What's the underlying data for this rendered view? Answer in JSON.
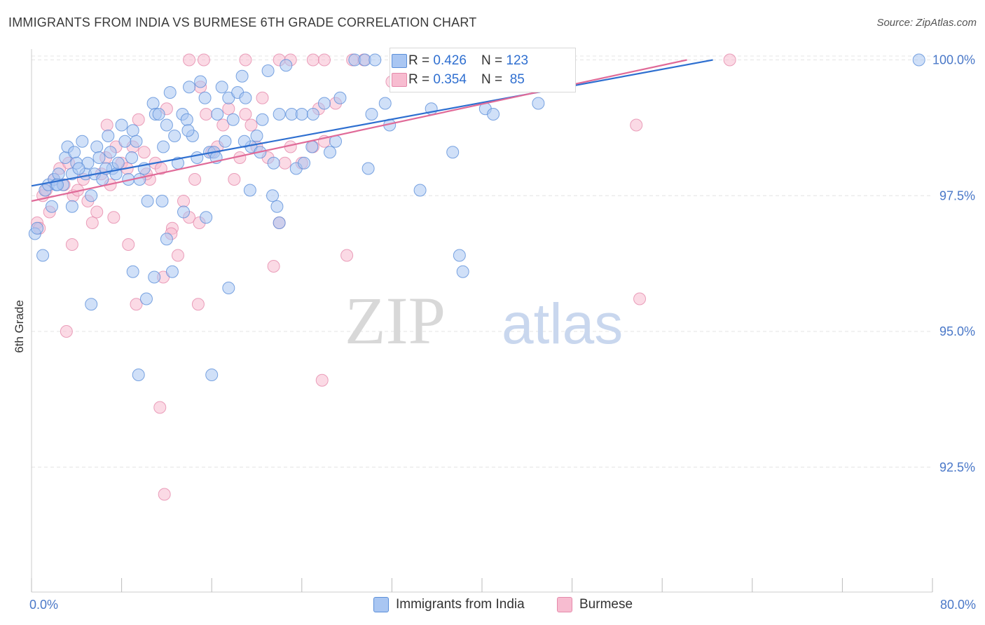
{
  "title": "IMMIGRANTS FROM INDIA VS BURMESE 6TH GRADE CORRELATION CHART",
  "source": "Source: ZipAtlas.com",
  "watermark": {
    "zip": "ZIP",
    "atlas": "atlas"
  },
  "colors": {
    "india_fill": "#a9c6f2",
    "india_stroke": "#5b8fd9",
    "india_line": "#2e6fd0",
    "burmese_fill": "#f7bcd0",
    "burmese_stroke": "#e58aab",
    "burmese_line": "#e06a98",
    "axis_label": "#4a78c8",
    "grid": "#e4e4e4"
  },
  "legend": {
    "rows": [
      {
        "r_label": "R = ",
        "r_value": "0.426",
        "n_label": "N = ",
        "n_value": "123"
      },
      {
        "r_label": "R = ",
        "r_value": "0.354",
        "n_label": "N = ",
        "n_value": " 85"
      }
    ]
  },
  "bottom_legend": {
    "india": "Immigrants from India",
    "burmese": "Burmese"
  },
  "chart_data": {
    "type": "scatter",
    "title": "IMMIGRANTS FROM INDIA VS BURMESE 6TH GRADE CORRELATION CHART",
    "xlabel": "",
    "ylabel": "6th Grade",
    "xlim": [
      0,
      80
    ],
    "ylim": [
      90.2,
      100.2
    ],
    "x_tick_labels": [
      "0.0%",
      "80.0%"
    ],
    "y_ticks": [
      92.5,
      95.0,
      97.5,
      100.0
    ],
    "y_tick_labels": [
      "92.5%",
      "95.0%",
      "97.5%",
      "100.0%"
    ],
    "grid": true,
    "legend_position": "top-center",
    "series": [
      {
        "name": "Immigrants from India",
        "R": 0.426,
        "N": 123,
        "trend": {
          "x": [
            0,
            60.5
          ],
          "y": [
            97.68,
            100.0
          ]
        },
        "points": [
          [
            0.3,
            96.8
          ],
          [
            0.5,
            96.9
          ],
          [
            1.0,
            96.4
          ],
          [
            1.2,
            97.6
          ],
          [
            1.5,
            97.7
          ],
          [
            1.8,
            97.3
          ],
          [
            2.0,
            97.8
          ],
          [
            2.2,
            97.7
          ],
          [
            2.4,
            97.9
          ],
          [
            2.8,
            97.7
          ],
          [
            3.0,
            98.2
          ],
          [
            3.2,
            98.4
          ],
          [
            3.6,
            97.9
          ],
          [
            3.8,
            98.3
          ],
          [
            4.0,
            98.1
          ],
          [
            4.5,
            98.5
          ],
          [
            4.8,
            97.9
          ],
          [
            5.0,
            98.1
          ],
          [
            5.3,
            97.5
          ],
          [
            5.6,
            97.9
          ],
          [
            5.8,
            98.4
          ],
          [
            6.0,
            98.2
          ],
          [
            6.3,
            97.8
          ],
          [
            6.8,
            98.6
          ],
          [
            7.0,
            98.3
          ],
          [
            7.2,
            98.0
          ],
          [
            7.5,
            97.9
          ],
          [
            8.0,
            98.8
          ],
          [
            8.3,
            98.5
          ],
          [
            8.6,
            97.8
          ],
          [
            9.0,
            98.7
          ],
          [
            9.3,
            98.5
          ],
          [
            9.6,
            97.8
          ],
          [
            10.0,
            98.0
          ],
          [
            10.3,
            97.4
          ],
          [
            10.8,
            99.2
          ],
          [
            11.0,
            99.0
          ],
          [
            11.3,
            99.0
          ],
          [
            11.7,
            98.4
          ],
          [
            12.0,
            98.8
          ],
          [
            12.3,
            99.4
          ],
          [
            12.7,
            98.6
          ],
          [
            13.0,
            98.1
          ],
          [
            13.4,
            99.0
          ],
          [
            13.8,
            98.9
          ],
          [
            14.0,
            99.5
          ],
          [
            14.3,
            98.6
          ],
          [
            14.7,
            98.2
          ],
          [
            15.0,
            99.6
          ],
          [
            15.4,
            99.3
          ],
          [
            15.8,
            98.3
          ],
          [
            16.2,
            98.3
          ],
          [
            16.5,
            99.0
          ],
          [
            16.9,
            99.5
          ],
          [
            17.2,
            98.5
          ],
          [
            17.5,
            99.3
          ],
          [
            17.9,
            98.9
          ],
          [
            18.3,
            99.4
          ],
          [
            18.7,
            99.7
          ],
          [
            19.0,
            99.3
          ],
          [
            19.5,
            98.4
          ],
          [
            20.0,
            98.6
          ],
          [
            20.5,
            98.9
          ],
          [
            21.0,
            99.8
          ],
          [
            21.5,
            98.1
          ],
          [
            22.0,
            99.0
          ],
          [
            22.6,
            99.9
          ],
          [
            23.1,
            99.0
          ],
          [
            24.0,
            99.0
          ],
          [
            25.0,
            99.0
          ],
          [
            26.0,
            99.2
          ],
          [
            28.7,
            100.0
          ],
          [
            29.6,
            100.0
          ],
          [
            30.5,
            100.0
          ],
          [
            33.3,
            100.0
          ],
          [
            37.4,
            98.3
          ],
          [
            34.5,
            97.6
          ],
          [
            38.0,
            96.4
          ],
          [
            38.3,
            96.1
          ],
          [
            9.5,
            94.2
          ],
          [
            5.3,
            95.5
          ],
          [
            9.0,
            96.1
          ],
          [
            10.2,
            95.6
          ],
          [
            12.5,
            96.1
          ],
          [
            17.5,
            95.8
          ],
          [
            16.0,
            94.2
          ],
          [
            13.5,
            97.2
          ],
          [
            15.5,
            97.1
          ],
          [
            12.0,
            96.7
          ],
          [
            22.0,
            97.0
          ],
          [
            23.5,
            98.0
          ],
          [
            29.9,
            98.0
          ],
          [
            34.8,
            99.6
          ],
          [
            40.3,
            99.1
          ],
          [
            41.0,
            99.0
          ],
          [
            43.9,
            99.7
          ],
          [
            44.5,
            99.7
          ],
          [
            45.0,
            99.2
          ],
          [
            35.5,
            99.1
          ],
          [
            31.8,
            98.8
          ],
          [
            27.4,
            99.3
          ],
          [
            26.5,
            98.3
          ],
          [
            24.9,
            98.4
          ],
          [
            21.4,
            97.5
          ],
          [
            19.4,
            97.6
          ],
          [
            11.6,
            97.4
          ],
          [
            10.9,
            96.0
          ],
          [
            3.6,
            97.3
          ],
          [
            2.3,
            97.7
          ],
          [
            4.2,
            98.0
          ],
          [
            6.6,
            98.0
          ],
          [
            7.7,
            98.1
          ],
          [
            8.9,
            98.2
          ],
          [
            13.9,
            98.7
          ],
          [
            16.4,
            98.2
          ],
          [
            18.9,
            98.5
          ],
          [
            20.3,
            98.3
          ],
          [
            21.8,
            97.3
          ],
          [
            24.2,
            98.1
          ],
          [
            27.0,
            98.5
          ],
          [
            30.2,
            99.0
          ],
          [
            31.4,
            99.2
          ],
          [
            78.8,
            100.0
          ]
        ]
      },
      {
        "name": "Burmese",
        "R": 0.354,
        "N": 85,
        "trend": {
          "x": [
            0,
            58.2
          ],
          "y": [
            97.4,
            100.0
          ]
        },
        "points": [
          [
            0.5,
            97.0
          ],
          [
            0.7,
            96.9
          ],
          [
            1.0,
            97.5
          ],
          [
            1.3,
            97.6
          ],
          [
            1.6,
            97.2
          ],
          [
            2.0,
            97.8
          ],
          [
            2.5,
            98.0
          ],
          [
            2.9,
            97.7
          ],
          [
            3.3,
            98.1
          ],
          [
            3.7,
            97.5
          ],
          [
            4.1,
            97.6
          ],
          [
            4.6,
            97.8
          ],
          [
            5.0,
            97.4
          ],
          [
            5.4,
            97.0
          ],
          [
            5.8,
            97.2
          ],
          [
            6.2,
            97.9
          ],
          [
            6.6,
            98.2
          ],
          [
            7.0,
            97.7
          ],
          [
            7.5,
            98.4
          ],
          [
            8.0,
            98.1
          ],
          [
            8.5,
            98.0
          ],
          [
            9.0,
            98.4
          ],
          [
            9.5,
            98.9
          ],
          [
            10.0,
            98.3
          ],
          [
            10.5,
            97.8
          ],
          [
            11.0,
            98.1
          ],
          [
            11.5,
            98.0
          ],
          [
            12.0,
            99.1
          ],
          [
            12.5,
            96.9
          ],
          [
            13.0,
            96.4
          ],
          [
            13.5,
            97.4
          ],
          [
            14.0,
            97.1
          ],
          [
            14.5,
            97.8
          ],
          [
            15.0,
            99.5
          ],
          [
            15.5,
            99.0
          ],
          [
            16.0,
            98.3
          ],
          [
            16.5,
            98.4
          ],
          [
            17.0,
            98.8
          ],
          [
            17.5,
            99.1
          ],
          [
            18.0,
            97.8
          ],
          [
            18.5,
            98.2
          ],
          [
            19.0,
            99.0
          ],
          [
            19.5,
            98.8
          ],
          [
            20.0,
            98.4
          ],
          [
            20.5,
            99.3
          ],
          [
            21.0,
            98.2
          ],
          [
            21.5,
            96.2
          ],
          [
            22.0,
            97.0
          ],
          [
            22.5,
            98.1
          ],
          [
            23.0,
            98.4
          ],
          [
            24.0,
            98.1
          ],
          [
            25.0,
            98.4
          ],
          [
            25.5,
            99.1
          ],
          [
            26.0,
            98.5
          ],
          [
            27.0,
            99.2
          ],
          [
            28.0,
            96.4
          ],
          [
            28.5,
            100.0
          ],
          [
            29.5,
            100.0
          ],
          [
            14.0,
            100.0
          ],
          [
            15.3,
            100.0
          ],
          [
            19.0,
            100.0
          ],
          [
            22.0,
            100.0
          ],
          [
            23.0,
            100.0
          ],
          [
            25.0,
            100.0
          ],
          [
            26.0,
            100.0
          ],
          [
            32.0,
            99.6
          ],
          [
            33.0,
            100.0
          ],
          [
            35.0,
            100.0
          ],
          [
            7.3,
            97.1
          ],
          [
            9.3,
            95.5
          ],
          [
            11.4,
            93.6
          ],
          [
            11.8,
            92.0
          ],
          [
            11.7,
            96.0
          ],
          [
            14.8,
            95.5
          ],
          [
            25.8,
            94.1
          ],
          [
            3.1,
            95.0
          ],
          [
            3.6,
            96.6
          ],
          [
            8.6,
            96.6
          ],
          [
            12.4,
            96.8
          ],
          [
            53.7,
            98.8
          ],
          [
            62.0,
            100.0
          ],
          [
            54.0,
            95.6
          ],
          [
            6.7,
            98.8
          ],
          [
            10.2,
            97.9
          ],
          [
            14.9,
            97.0
          ]
        ]
      }
    ]
  }
}
